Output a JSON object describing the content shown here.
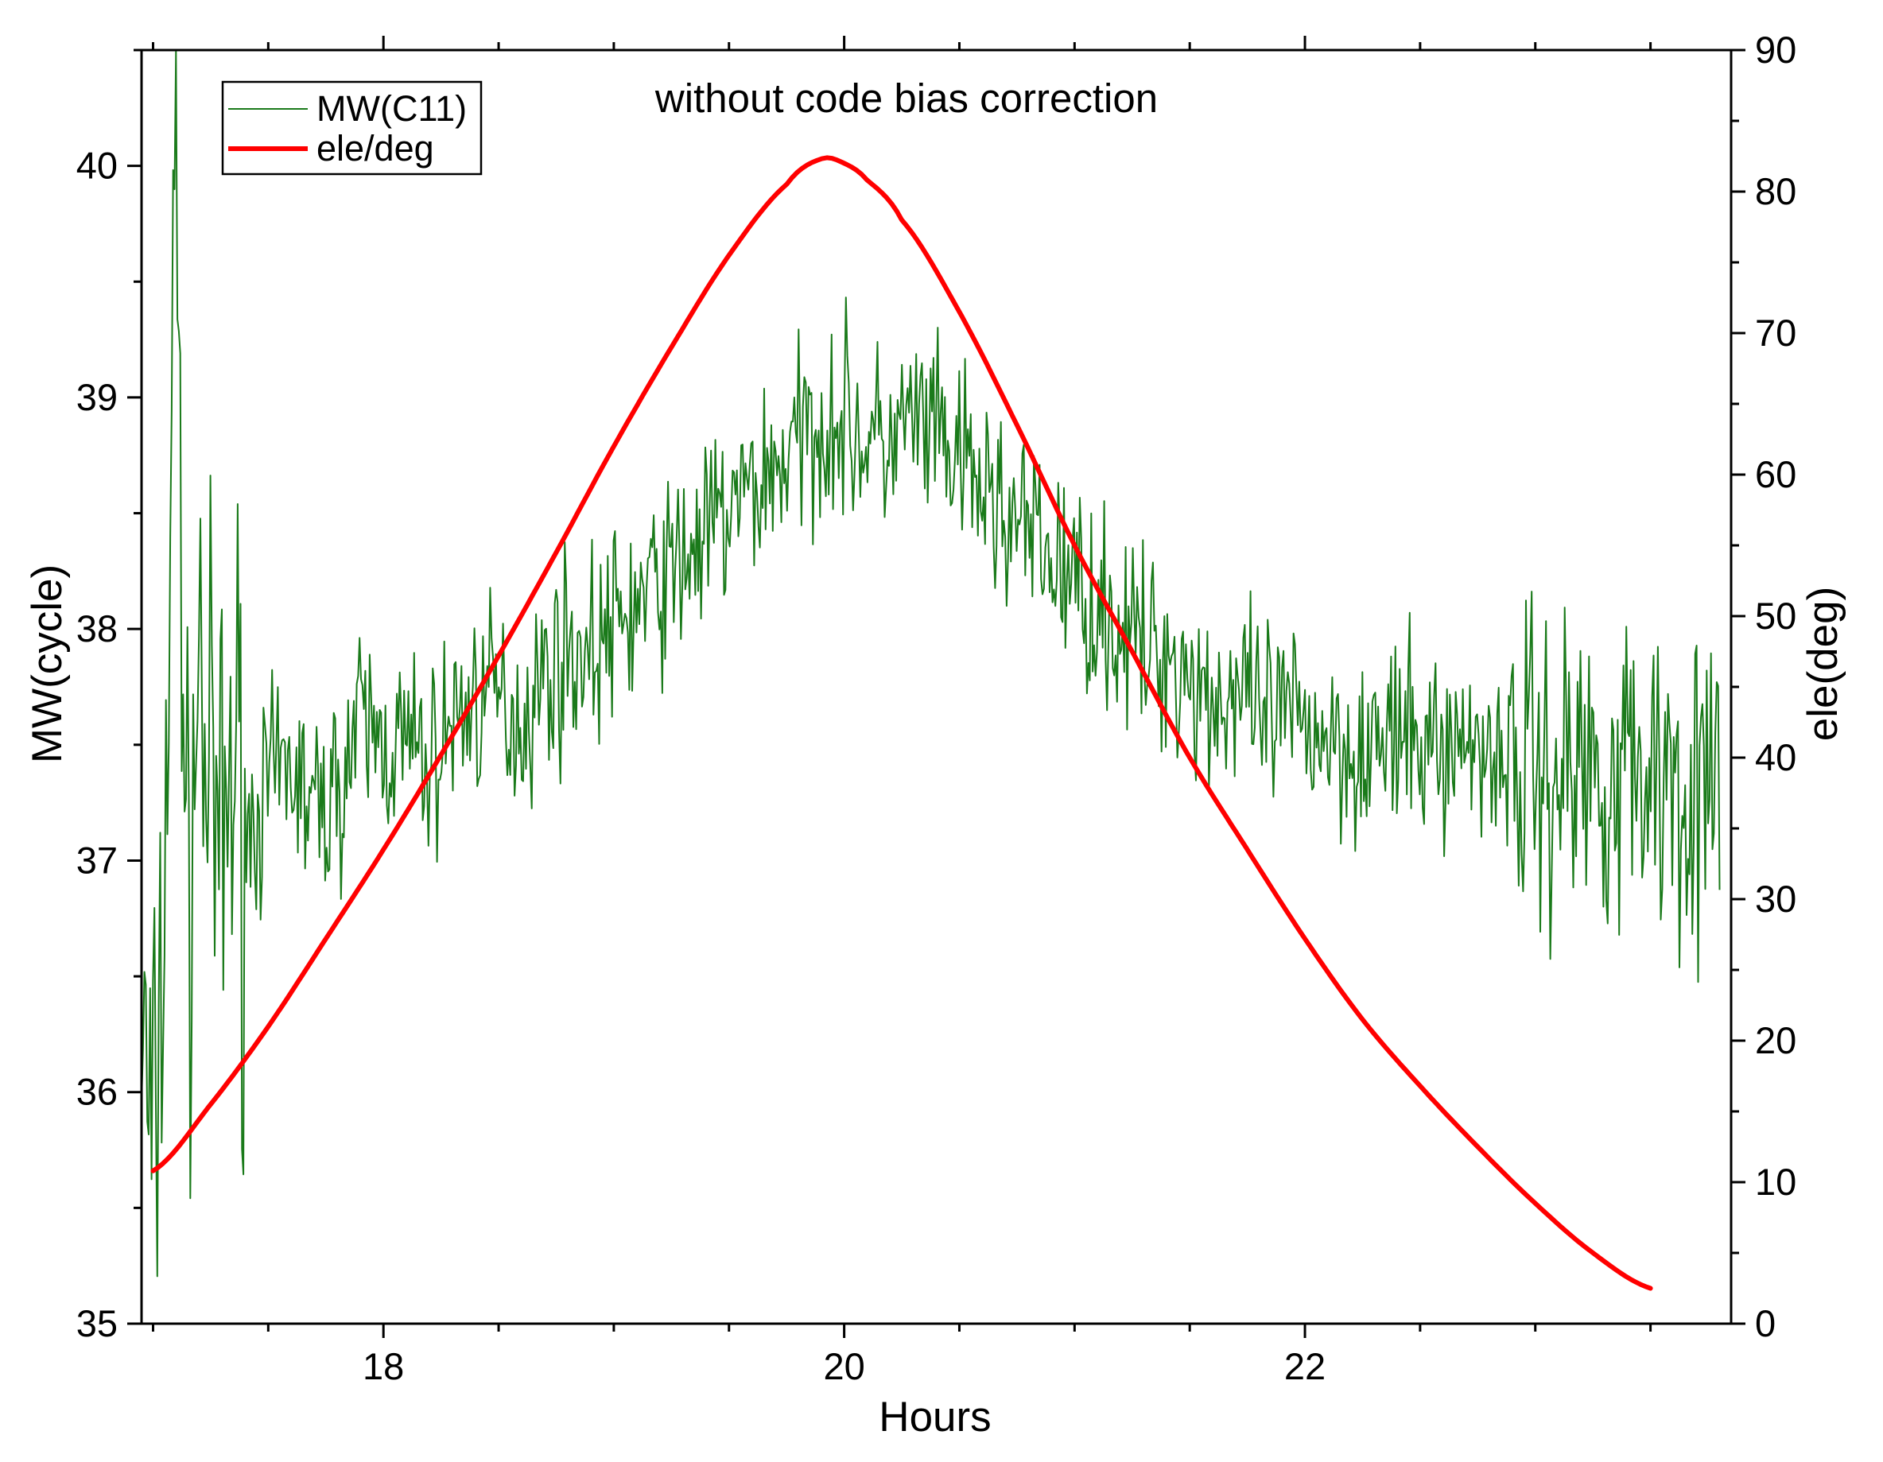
{
  "chart_data": {
    "type": "line",
    "title": "without code bias correction",
    "xlabel": "Hours",
    "ylabel": "MW(cycle)",
    "y2label": "ele(deg)",
    "xlim": [
      16.95,
      23.85
    ],
    "ylim": [
      35,
      40.5
    ],
    "y2lim": [
      0,
      90
    ],
    "x_ticks": [
      18,
      20,
      22
    ],
    "x_tick_labels": [
      "18",
      "20",
      "22"
    ],
    "y_ticks": [
      35,
      36,
      37,
      38,
      39,
      40
    ],
    "y_tick_labels": [
      "35",
      "36",
      "37",
      "38",
      "39",
      "40"
    ],
    "y2_ticks": [
      0,
      10,
      20,
      30,
      40,
      50,
      60,
      70,
      80,
      90
    ],
    "y2_tick_labels": [
      "0",
      "10",
      "20",
      "30",
      "40",
      "50",
      "60",
      "70",
      "80",
      "90"
    ],
    "grid": false,
    "legend_position": "top-left",
    "series": [
      {
        "name": "MW(C11)",
        "axis": "left",
        "color": "#1a7a1a",
        "style": "thin noisy line",
        "x": [
          16.95,
          17.0,
          17.05,
          17.1,
          17.15,
          17.2,
          17.25,
          17.3,
          17.35,
          17.4,
          17.5,
          17.6,
          17.7,
          17.8,
          17.9,
          18.0,
          18.1,
          18.2,
          18.3,
          18.4,
          18.5,
          18.6,
          18.7,
          18.8,
          18.9,
          19.0,
          19.1,
          19.2,
          19.3,
          19.4,
          19.5,
          19.6,
          19.7,
          19.8,
          19.9,
          20.0,
          20.1,
          20.2,
          20.3,
          20.4,
          20.5,
          20.6,
          20.7,
          20.8,
          20.9,
          21.0,
          21.1,
          21.2,
          21.3,
          21.4,
          21.5,
          21.6,
          21.7,
          21.8,
          21.9,
          22.0,
          22.2,
          22.4,
          22.6,
          22.8,
          23.0,
          23.2,
          23.4,
          23.6,
          23.8
        ],
        "values": [
          36.3,
          35.6,
          36.8,
          40.1,
          36.6,
          37.9,
          37.2,
          37.0,
          37.5,
          37.1,
          37.3,
          37.4,
          37.2,
          37.3,
          37.6,
          37.5,
          37.5,
          37.4,
          37.6,
          37.7,
          37.7,
          37.6,
          37.8,
          37.9,
          37.9,
          38.0,
          38.1,
          38.2,
          38.3,
          38.4,
          38.5,
          38.6,
          38.7,
          38.8,
          38.9,
          38.9,
          38.8,
          38.8,
          38.9,
          38.8,
          38.7,
          38.6,
          38.5,
          38.4,
          38.3,
          38.2,
          38.1,
          38.0,
          37.9,
          37.9,
          37.8,
          37.7,
          37.7,
          37.6,
          37.6,
          37.6,
          37.5,
          37.5,
          37.5,
          37.5,
          37.4,
          37.4,
          37.4,
          37.4,
          37.2
        ]
      },
      {
        "name": "ele/deg",
        "axis": "right",
        "color": "#ff0000",
        "style": "thick smooth line",
        "x": [
          17.0,
          17.25,
          17.5,
          17.75,
          18.0,
          18.25,
          18.5,
          18.75,
          19.0,
          19.25,
          19.5,
          19.75,
          19.9,
          20.0,
          20.1,
          20.25,
          20.5,
          20.75,
          21.0,
          21.25,
          21.5,
          21.75,
          22.0,
          22.25,
          22.5,
          22.75,
          23.0,
          23.25,
          23.5
        ],
        "values": [
          10.8,
          15.5,
          21.0,
          27.2,
          33.5,
          40.2,
          47.2,
          54.5,
          62.0,
          69.0,
          75.5,
          80.5,
          82.3,
          82.0,
          80.8,
          78.0,
          71.5,
          63.5,
          55.0,
          47.5,
          40.0,
          33.5,
          27.2,
          21.5,
          16.8,
          12.5,
          8.5,
          5.0,
          2.5
        ]
      }
    ]
  }
}
